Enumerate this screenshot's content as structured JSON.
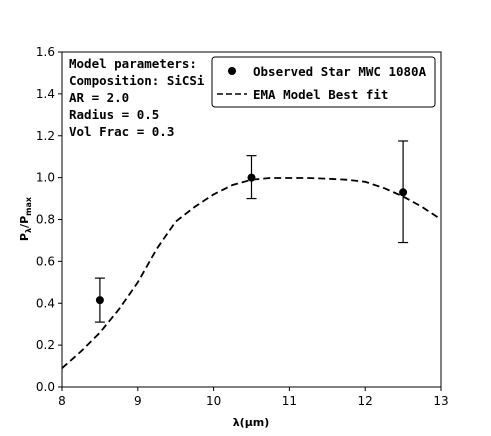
{
  "chart_data": {
    "type": "scatter",
    "xlabel": "λ(μm)",
    "ylabel": {
      "base": "P",
      "sub1": "λ",
      "mid": "/P",
      "sub2": "max"
    },
    "xlim": [
      8,
      13
    ],
    "ylim": [
      0.0,
      1.6
    ],
    "xticks": [
      "8",
      "9",
      "10",
      "11",
      "12",
      "13"
    ],
    "yticks": [
      "0.0",
      "0.2",
      "0.4",
      "0.6",
      "0.8",
      "1.0",
      "1.2",
      "1.4",
      "1.6"
    ],
    "grid": false,
    "legend_position": "top-right",
    "annotation": [
      "Model parameters:",
      "Composition: SiCSi",
      "AR = 2.0",
      "Radius = 0.5",
      "Vol Frac = 0.3"
    ],
    "series": [
      {
        "name": "Observed Star MWC 1080A",
        "kind": "scatter-errorbar",
        "color": "#000000",
        "points": [
          {
            "x": 8.5,
            "y": 0.415,
            "err_low": 0.105,
            "err_high": 0.105
          },
          {
            "x": 10.5,
            "y": 1.0,
            "err_low": 0.1,
            "err_high": 0.105
          },
          {
            "x": 12.5,
            "y": 0.93,
            "err_low": 0.24,
            "err_high": 0.245
          }
        ]
      },
      {
        "name": "EMA Model Best fit",
        "kind": "dashed-line",
        "color": "#000000",
        "x": [
          8.0,
          8.25,
          8.5,
          8.75,
          9.0,
          9.25,
          9.5,
          9.75,
          10.0,
          10.25,
          10.5,
          10.75,
          11.0,
          11.25,
          11.5,
          11.75,
          12.0,
          12.25,
          12.5,
          12.75,
          13.0
        ],
        "y": [
          0.09,
          0.17,
          0.26,
          0.37,
          0.5,
          0.66,
          0.79,
          0.86,
          0.92,
          0.965,
          0.99,
          0.998,
          0.998,
          0.998,
          0.995,
          0.99,
          0.98,
          0.95,
          0.91,
          0.86,
          0.8
        ]
      }
    ]
  }
}
